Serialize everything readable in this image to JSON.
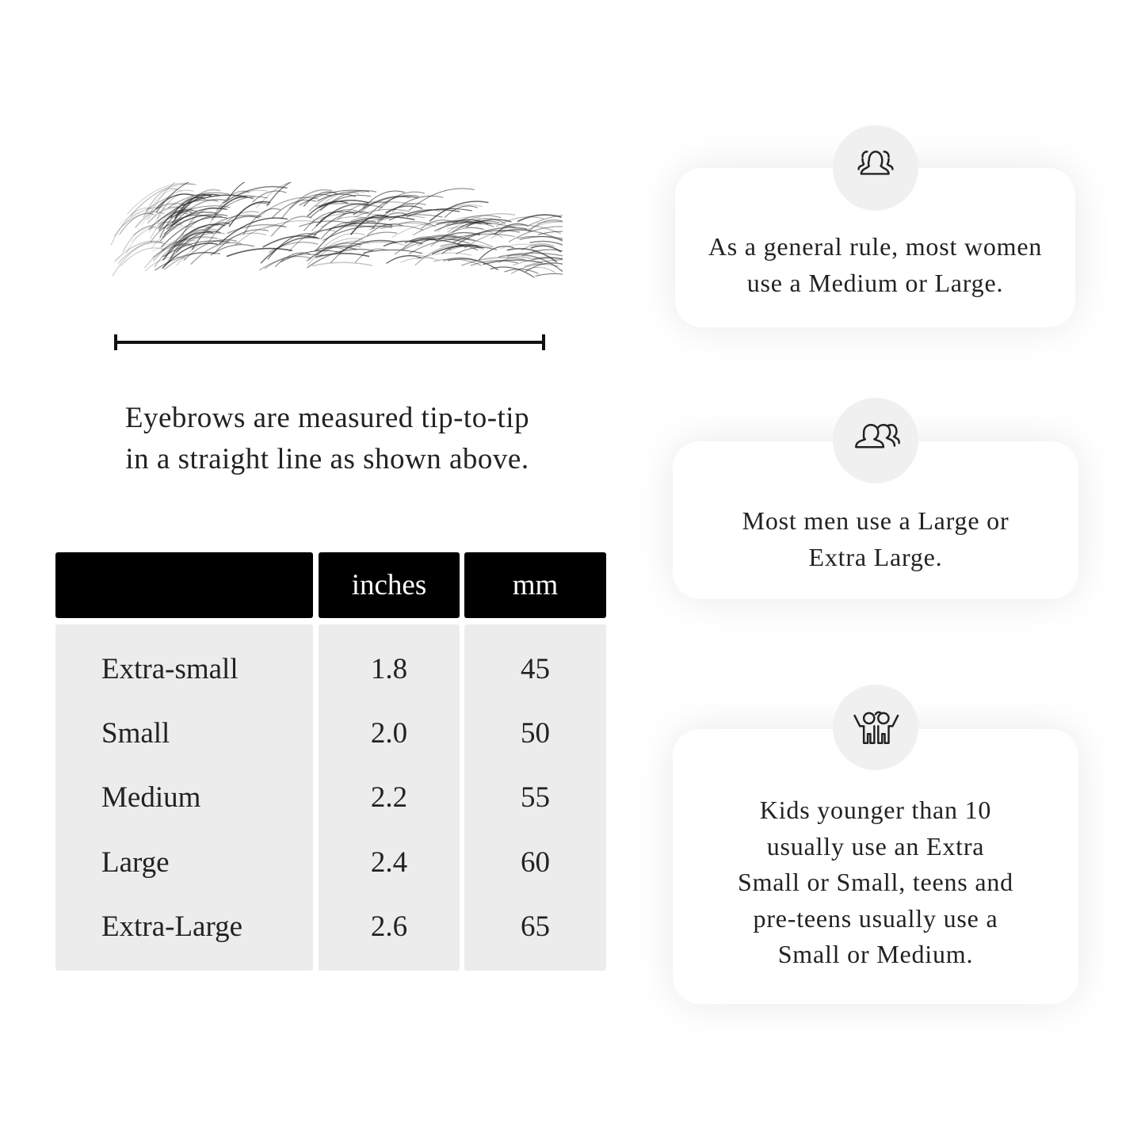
{
  "caption": {
    "line1": "Eyebrows are measured tip-to-tip",
    "line2": "in a straight line as shown above."
  },
  "table": {
    "headers": [
      "",
      "inches",
      "mm"
    ],
    "rows": [
      {
        "size": "Extra-small",
        "inches": "1.8",
        "mm": "45"
      },
      {
        "size": "Small",
        "inches": "2.0",
        "mm": "50"
      },
      {
        "size": "Medium",
        "inches": "2.2",
        "mm": "55"
      },
      {
        "size": "Large",
        "inches": "2.4",
        "mm": "60"
      },
      {
        "size": "Extra-Large",
        "inches": "2.6",
        "mm": "65"
      }
    ]
  },
  "cards": [
    {
      "icon": "women-group-icon",
      "lines": [
        "As a general rule, most women",
        "use a Medium or Large."
      ]
    },
    {
      "icon": "men-group-icon",
      "lines": [
        "Most men use a Large or",
        "Extra Large."
      ]
    },
    {
      "icon": "kids-icon",
      "lines": [
        "Kids younger than 10",
        "usually use an Extra",
        "Small or Small, teens and",
        "pre-teens usually use a",
        "Small or Medium."
      ]
    }
  ],
  "colors": {
    "header_bg": "#000000",
    "cell_bg": "#ececec",
    "icon_circle": "#f0f0f0"
  }
}
